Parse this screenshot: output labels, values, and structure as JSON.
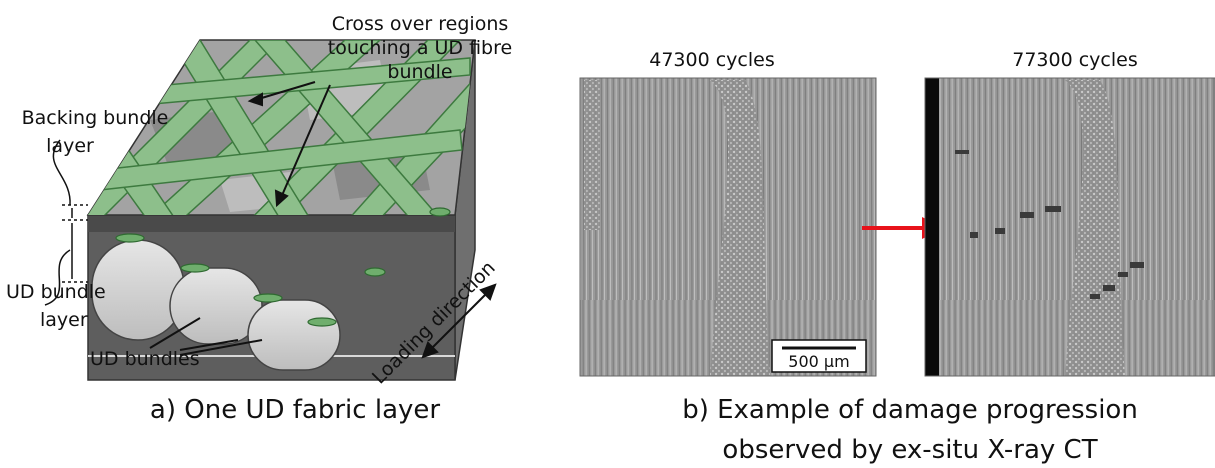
{
  "left_panel": {
    "labels": {
      "cross_over": [
        "Cross over regions",
        "touching a UD fibre",
        "bundle"
      ],
      "backing": [
        "Backing bundle",
        "layer"
      ],
      "ud_layer": [
        "UD bundle",
        "layer"
      ],
      "ud_bundles": "UD bundles",
      "loading": "Loading direction"
    },
    "caption": "a) One UD fabric layer"
  },
  "right_panel": {
    "image_titles": [
      "47300 cycles",
      "77300 cycles"
    ],
    "scale_bar": "500 µm",
    "caption": [
      "b) Example of damage progression",
      "observed by ex-situ X-ray CT"
    ]
  },
  "colors": {
    "fibre_green": "#8dbf8b",
    "fibre_green_dark": "#3d7a3f",
    "matrix_grey": "#a9a9a9",
    "arrow_red": "#e8121a"
  }
}
